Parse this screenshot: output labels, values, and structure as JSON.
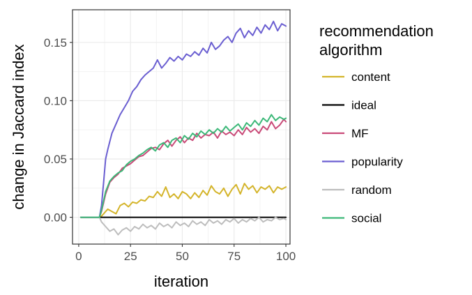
{
  "chart_data": {
    "type": "line",
    "xlabel": "iteration",
    "ylabel": "change in Jaccard index",
    "xlim": [
      -3,
      102
    ],
    "ylim": [
      -0.023,
      0.178
    ],
    "xticks": [
      0,
      25,
      50,
      75,
      100
    ],
    "xtick_labels": [
      "0",
      "25",
      "50",
      "75",
      "100"
    ],
    "yticks": [
      0.0,
      0.05,
      0.1,
      0.15
    ],
    "ytick_labels": [
      "0.00",
      "0.05",
      "0.10",
      "0.15"
    ],
    "grid": true,
    "legend": {
      "title_lines": [
        "recommendation",
        "algorithm"
      ],
      "placement": "right"
    },
    "series": [
      {
        "name": "content",
        "color": "#D4B42A",
        "x": [
          1,
          5,
          10,
          11,
          14,
          16,
          18,
          20,
          22,
          24,
          26,
          28,
          30,
          32,
          34,
          36,
          38,
          40,
          42,
          44,
          46,
          48,
          50,
          52,
          54,
          56,
          58,
          60,
          62,
          64,
          66,
          68,
          70,
          72,
          74,
          76,
          78,
          80,
          82,
          84,
          86,
          88,
          90,
          92,
          94,
          96,
          98,
          100
        ],
        "y": [
          0,
          0,
          0,
          0.001,
          0.007,
          0.005,
          0.003,
          0.01,
          0.012,
          0.009,
          0.013,
          0.012,
          0.015,
          0.014,
          0.018,
          0.017,
          0.022,
          0.018,
          0.026,
          0.017,
          0.02,
          0.016,
          0.022,
          0.02,
          0.016,
          0.021,
          0.017,
          0.023,
          0.019,
          0.027,
          0.022,
          0.02,
          0.025,
          0.018,
          0.024,
          0.028,
          0.02,
          0.029,
          0.024,
          0.027,
          0.021,
          0.026,
          0.024,
          0.027,
          0.021,
          0.026,
          0.024,
          0.026
        ]
      },
      {
        "name": "ideal",
        "color": "#000000",
        "x": [
          1,
          100
        ],
        "y": [
          0,
          0
        ]
      },
      {
        "name": "MF",
        "color": "#C94A78",
        "x": [
          1,
          5,
          10,
          11,
          13,
          15,
          17,
          19,
          21,
          23,
          25,
          27,
          29,
          31,
          33,
          35,
          37,
          39,
          41,
          43,
          45,
          47,
          49,
          51,
          53,
          55,
          57,
          59,
          61,
          63,
          65,
          67,
          69,
          71,
          73,
          75,
          77,
          79,
          81,
          83,
          85,
          87,
          89,
          91,
          93,
          95,
          97,
          99,
          100
        ],
        "y": [
          0,
          0,
          0,
          0.005,
          0.02,
          0.03,
          0.034,
          0.037,
          0.042,
          0.044,
          0.046,
          0.049,
          0.052,
          0.053,
          0.056,
          0.059,
          0.06,
          0.058,
          0.063,
          0.066,
          0.061,
          0.066,
          0.069,
          0.064,
          0.068,
          0.066,
          0.072,
          0.068,
          0.071,
          0.07,
          0.073,
          0.068,
          0.074,
          0.071,
          0.073,
          0.07,
          0.075,
          0.071,
          0.077,
          0.073,
          0.076,
          0.072,
          0.078,
          0.075,
          0.082,
          0.076,
          0.079,
          0.084,
          0.082
        ]
      },
      {
        "name": "popularity",
        "color": "#6A5ED1",
        "x": [
          1,
          5,
          10,
          11,
          12,
          13,
          14,
          15,
          16,
          18,
          20,
          22,
          24,
          26,
          28,
          30,
          32,
          34,
          36,
          38,
          40,
          42,
          44,
          46,
          48,
          50,
          52,
          54,
          56,
          58,
          60,
          62,
          64,
          66,
          68,
          70,
          72,
          74,
          76,
          78,
          80,
          82,
          84,
          86,
          88,
          90,
          92,
          94,
          96,
          98,
          100
        ],
        "y": [
          0,
          0,
          0,
          0.01,
          0.03,
          0.05,
          0.058,
          0.065,
          0.072,
          0.08,
          0.088,
          0.094,
          0.1,
          0.108,
          0.112,
          0.118,
          0.122,
          0.125,
          0.128,
          0.135,
          0.128,
          0.132,
          0.137,
          0.134,
          0.138,
          0.135,
          0.14,
          0.138,
          0.142,
          0.139,
          0.145,
          0.141,
          0.15,
          0.144,
          0.147,
          0.152,
          0.155,
          0.15,
          0.158,
          0.162,
          0.154,
          0.16,
          0.156,
          0.163,
          0.158,
          0.165,
          0.161,
          0.168,
          0.16,
          0.166,
          0.164
        ]
      },
      {
        "name": "random",
        "color": "#BDBDBD",
        "x": [
          1,
          5,
          10,
          11,
          13,
          15,
          17,
          19,
          21,
          23,
          25,
          27,
          29,
          31,
          33,
          35,
          37,
          39,
          41,
          43,
          45,
          47,
          49,
          51,
          53,
          55,
          57,
          59,
          61,
          63,
          65,
          67,
          69,
          71,
          73,
          75,
          77,
          79,
          81,
          83,
          85,
          87,
          89,
          91,
          93,
          95,
          97,
          99,
          100
        ],
        "y": [
          0,
          0,
          0,
          -0.004,
          -0.008,
          -0.012,
          -0.01,
          -0.015,
          -0.011,
          -0.009,
          -0.012,
          -0.008,
          -0.01,
          -0.006,
          -0.009,
          -0.007,
          -0.01,
          -0.005,
          -0.008,
          -0.006,
          -0.009,
          -0.004,
          -0.007,
          -0.005,
          -0.008,
          -0.003,
          -0.006,
          -0.004,
          -0.007,
          -0.002,
          -0.005,
          -0.003,
          -0.006,
          -0.002,
          -0.004,
          -0.001,
          -0.005,
          -0.002,
          -0.004,
          -0.001,
          -0.003,
          0.0,
          -0.004,
          -0.002,
          -0.003,
          0.0,
          -0.002,
          -0.001,
          -0.002
        ]
      },
      {
        "name": "social",
        "color": "#3CB878",
        "x": [
          1,
          5,
          10,
          11,
          13,
          15,
          17,
          19,
          21,
          23,
          25,
          27,
          29,
          31,
          33,
          35,
          37,
          39,
          41,
          43,
          45,
          47,
          49,
          51,
          53,
          55,
          57,
          59,
          61,
          63,
          65,
          67,
          69,
          71,
          73,
          75,
          77,
          79,
          81,
          83,
          85,
          87,
          89,
          91,
          93,
          95,
          97,
          99,
          100
        ],
        "y": [
          0,
          0,
          0,
          0.006,
          0.022,
          0.031,
          0.035,
          0.038,
          0.04,
          0.045,
          0.048,
          0.05,
          0.053,
          0.055,
          0.058,
          0.06,
          0.057,
          0.062,
          0.064,
          0.06,
          0.066,
          0.068,
          0.064,
          0.07,
          0.067,
          0.072,
          0.069,
          0.074,
          0.071,
          0.075,
          0.072,
          0.076,
          0.073,
          0.078,
          0.074,
          0.077,
          0.08,
          0.075,
          0.081,
          0.078,
          0.083,
          0.079,
          0.085,
          0.082,
          0.088,
          0.083,
          0.086,
          0.084,
          0.085
        ]
      }
    ]
  }
}
